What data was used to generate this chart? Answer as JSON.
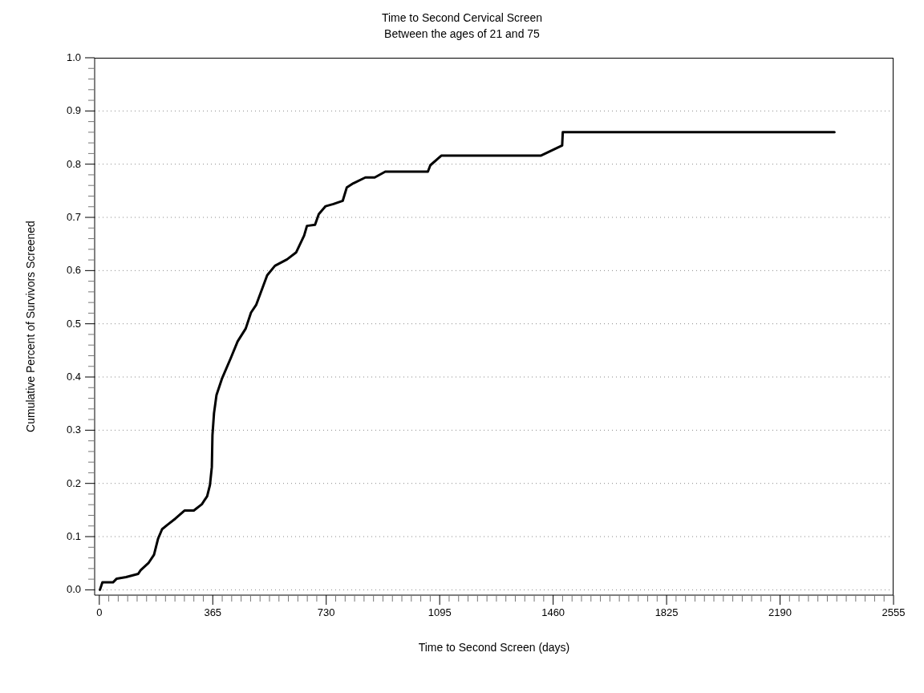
{
  "chart_data": {
    "type": "line",
    "title": "Time to Second Cervical Screen",
    "subtitle": "Between the ages of 21 and 75",
    "xlabel": "Time to Second Screen (days)",
    "ylabel": "Cumulative Percent of Survivors Screened",
    "x": [
      2,
      10,
      44,
      56,
      86,
      125,
      133,
      159,
      176,
      189,
      202,
      219,
      245,
      274,
      304,
      330,
      347,
      356,
      362,
      364,
      369,
      377,
      394,
      424,
      445,
      471,
      488,
      505,
      540,
      565,
      604,
      633,
      659,
      668,
      694,
      706,
      728,
      753,
      783,
      796,
      817,
      856,
      886,
      920,
      1057,
      1065,
      1100,
      1420,
      1489,
      1491,
      2365
    ],
    "series": [
      {
        "color": "#000000",
        "values": [
          0,
          0.014,
          0.014,
          0.021,
          0.024,
          0.03,
          0.037,
          0.051,
          0.066,
          0.096,
          0.114,
          0.122,
          0.134,
          0.149,
          0.149,
          0.161,
          0.176,
          0.197,
          0.231,
          0.291,
          0.332,
          0.366,
          0.396,
          0.437,
          0.467,
          0.491,
          0.521,
          0.536,
          0.591,
          0.609,
          0.621,
          0.634,
          0.666,
          0.684,
          0.686,
          0.706,
          0.721,
          0.725,
          0.731,
          0.756,
          0.764,
          0.775,
          0.775,
          0.786,
          0.786,
          0.798,
          0.816,
          0.816,
          0.835,
          0.86,
          0.86
        ]
      }
    ],
    "xlim": [
      -15,
      2555
    ],
    "ylim": [
      -0.01,
      1
    ],
    "xticks": [
      0,
      365,
      730,
      1095,
      1460,
      1825,
      2190,
      2555,
      {
        "value": 30.42,
        "label": null
      },
      {
        "value": 60.83,
        "label": null
      },
      {
        "value": 91.25,
        "label": null
      },
      {
        "value": 121.67,
        "label": null
      },
      {
        "value": 152.08,
        "label": null
      },
      {
        "value": 182.5,
        "label": null
      },
      {
        "value": 212.92,
        "label": null
      },
      {
        "value": 243.33,
        "label": null
      },
      {
        "value": 273.75,
        "label": null
      },
      {
        "value": 304.17,
        "label": null
      },
      {
        "value": 334.58,
        "label": null
      },
      {
        "value": 395.42,
        "label": null
      },
      {
        "value": 425.83,
        "label": null
      },
      {
        "value": 456.25,
        "label": null
      },
      {
        "value": 486.67,
        "label": null
      },
      {
        "value": 517.08,
        "label": null
      },
      {
        "value": 547.5,
        "label": null
      },
      {
        "value": 577.92,
        "label": null
      },
      {
        "value": 608.33,
        "label": null
      },
      {
        "value": 638.75,
        "label": null
      },
      {
        "value": 669.17,
        "label": null
      },
      {
        "value": 699.58,
        "label": null
      },
      {
        "value": 760.42,
        "label": null
      },
      {
        "value": 790.83,
        "label": null
      },
      {
        "value": 821.25,
        "label": null
      },
      {
        "value": 851.67,
        "label": null
      },
      {
        "value": 882.08,
        "label": null
      },
      {
        "value": 912.5,
        "label": null
      },
      {
        "value": 942.92,
        "label": null
      },
      {
        "value": 973.33,
        "label": null
      },
      {
        "value": 1003.75,
        "label": null
      },
      {
        "value": 1034.17,
        "label": null
      },
      {
        "value": 1064.58,
        "label": null
      },
      {
        "value": 1125.42,
        "label": null
      },
      {
        "value": 1155.83,
        "label": null
      },
      {
        "value": 1186.25,
        "label": null
      },
      {
        "value": 1216.67,
        "label": null
      },
      {
        "value": 1247.08,
        "label": null
      },
      {
        "value": 1277.5,
        "label": null
      },
      {
        "value": 1307.92,
        "label": null
      },
      {
        "value": 1338.33,
        "label": null
      },
      {
        "value": 1368.75,
        "label": null
      },
      {
        "value": 1399.17,
        "label": null
      },
      {
        "value": 1429.58,
        "label": null
      },
      {
        "value": 1490.42,
        "label": null
      },
      {
        "value": 1520.83,
        "label": null
      },
      {
        "value": 1551.25,
        "label": null
      },
      {
        "value": 1581.67,
        "label": null
      },
      {
        "value": 1612.08,
        "label": null
      },
      {
        "value": 1642.5,
        "label": null
      },
      {
        "value": 1672.92,
        "label": null
      },
      {
        "value": 1703.33,
        "label": null
      },
      {
        "value": 1733.75,
        "label": null
      },
      {
        "value": 1764.17,
        "label": null
      },
      {
        "value": 1794.58,
        "label": null
      },
      {
        "value": 1855.42,
        "label": null
      },
      {
        "value": 1885.83,
        "label": null
      },
      {
        "value": 1916.25,
        "label": null
      },
      {
        "value": 1946.67,
        "label": null
      },
      {
        "value": 1977.08,
        "label": null
      },
      {
        "value": 2007.5,
        "label": null
      },
      {
        "value": 2037.92,
        "label": null
      },
      {
        "value": 2068.33,
        "label": null
      },
      {
        "value": 2098.75,
        "label": null
      },
      {
        "value": 2129.17,
        "label": null
      },
      {
        "value": 2159.58,
        "label": null
      },
      {
        "value": 2220.42,
        "label": null
      },
      {
        "value": 2250.83,
        "label": null
      },
      {
        "value": 2281.25,
        "label": null
      },
      {
        "value": 2311.67,
        "label": null
      },
      {
        "value": 2342.08,
        "label": null
      },
      {
        "value": 2372.5,
        "label": null
      },
      {
        "value": 2402.92,
        "label": null
      },
      {
        "value": 2433.33,
        "label": null
      },
      {
        "value": 2463.75,
        "label": null
      },
      {
        "value": 2494.17,
        "label": null
      },
      {
        "value": 2524.58,
        "label": null
      }
    ],
    "yticks": [
      {
        "value": 0,
        "label": "0.0"
      },
      {
        "value": 0.1,
        "label": "0.1"
      },
      {
        "value": 0.2,
        "label": "0.2"
      },
      {
        "value": 0.3,
        "label": "0.3"
      },
      {
        "value": 0.4,
        "label": "0.4"
      },
      {
        "value": 0.5,
        "label": "0.5"
      },
      {
        "value": 0.6,
        "label": "0.6"
      },
      {
        "value": 0.7,
        "label": "0.7"
      },
      {
        "value": 0.8,
        "label": "0.8"
      },
      {
        "value": 0.9,
        "label": "0.9"
      },
      {
        "value": 1,
        "label": "1.0"
      },
      {
        "value": 0.02,
        "label": null
      },
      {
        "value": 0.04,
        "label": null
      },
      {
        "value": 0.06,
        "label": null
      },
      {
        "value": 0.08,
        "label": null
      },
      {
        "value": 0.12,
        "label": null
      },
      {
        "value": 0.14,
        "label": null
      },
      {
        "value": 0.16,
        "label": null
      },
      {
        "value": 0.18,
        "label": null
      },
      {
        "value": 0.22,
        "label": null
      },
      {
        "value": 0.24,
        "label": null
      },
      {
        "value": 0.26,
        "label": null
      },
      {
        "value": 0.28,
        "label": null
      },
      {
        "value": 0.32,
        "label": null
      },
      {
        "value": 0.34,
        "label": null
      },
      {
        "value": 0.36,
        "label": null
      },
      {
        "value": 0.38,
        "label": null
      },
      {
        "value": 0.42,
        "label": null
      },
      {
        "value": 0.44,
        "label": null
      },
      {
        "value": 0.46,
        "label": null
      },
      {
        "value": 0.48,
        "label": null
      },
      {
        "value": 0.52,
        "label": null
      },
      {
        "value": 0.54,
        "label": null
      },
      {
        "value": 0.56,
        "label": null
      },
      {
        "value": 0.58,
        "label": null
      },
      {
        "value": 0.62,
        "label": null
      },
      {
        "value": 0.64,
        "label": null
      },
      {
        "value": 0.66,
        "label": null
      },
      {
        "value": 0.68,
        "label": null
      },
      {
        "value": 0.72,
        "label": null
      },
      {
        "value": 0.74,
        "label": null
      },
      {
        "value": 0.76,
        "label": null
      },
      {
        "value": 0.78,
        "label": null
      },
      {
        "value": 0.82,
        "label": null
      },
      {
        "value": 0.84,
        "label": null
      },
      {
        "value": 0.86,
        "label": null
      },
      {
        "value": 0.88,
        "label": null
      },
      {
        "value": 0.92,
        "label": null
      },
      {
        "value": 0.94,
        "label": null
      },
      {
        "value": 0.96,
        "label": null
      },
      {
        "value": 0.98,
        "label": null
      }
    ],
    "grid": "y",
    "marker": "none",
    "line_style": "solid"
  }
}
